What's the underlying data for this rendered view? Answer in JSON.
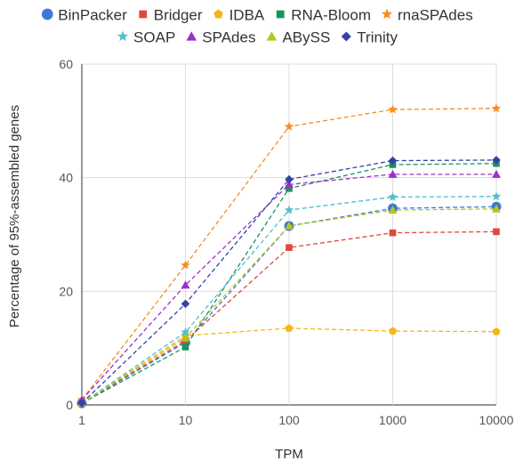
{
  "chart_data": {
    "type": "line",
    "title": "",
    "xlabel": "TPM",
    "ylabel": "Percentage of 95%-assembled genes",
    "x_scale": "log",
    "x": [
      1,
      10,
      100,
      1000,
      10000
    ],
    "x_tick_labels": [
      "1",
      "10",
      "100",
      "1000",
      "10000"
    ],
    "ylim": [
      0,
      60
    ],
    "y_ticks": [
      0,
      20,
      40,
      60
    ],
    "grid": true,
    "legend_position": "top",
    "series": [
      {
        "name": "BinPacker",
        "color": "#3c78d8",
        "marker": "circle",
        "values": [
          0.3,
          11.0,
          31.5,
          34.6,
          34.9
        ]
      },
      {
        "name": "Bridger",
        "color": "#e0483d",
        "marker": "square",
        "values": [
          0.3,
          11.3,
          27.7,
          30.3,
          30.5
        ]
      },
      {
        "name": "IDBA",
        "color": "#f6b619",
        "marker": "pentagon",
        "values": [
          0.3,
          12.2,
          13.5,
          13.0,
          12.9
        ]
      },
      {
        "name": "RNA-Bloom",
        "color": "#16955a",
        "marker": "square",
        "values": [
          0.3,
          10.2,
          38.1,
          42.3,
          42.5
        ]
      },
      {
        "name": "rnaSPAdes",
        "color": "#f98c1d",
        "marker": "star",
        "values": [
          0.9,
          24.6,
          49.0,
          52.0,
          52.2
        ]
      },
      {
        "name": "SOAP",
        "color": "#4ec0cf",
        "marker": "star",
        "values": [
          0.3,
          12.8,
          34.3,
          36.6,
          36.7
        ]
      },
      {
        "name": "SPAdes",
        "color": "#9b31c8",
        "marker": "triangle",
        "values": [
          0.9,
          21.1,
          38.8,
          40.6,
          40.6
        ]
      },
      {
        "name": "ABySS",
        "color": "#b8c41f",
        "marker": "triangle",
        "values": [
          0.3,
          11.8,
          31.5,
          34.3,
          34.5
        ]
      },
      {
        "name": "Trinity",
        "color": "#3541a6",
        "marker": "diamond",
        "values": [
          0.3,
          17.8,
          39.7,
          43.0,
          43.1
        ]
      }
    ]
  }
}
